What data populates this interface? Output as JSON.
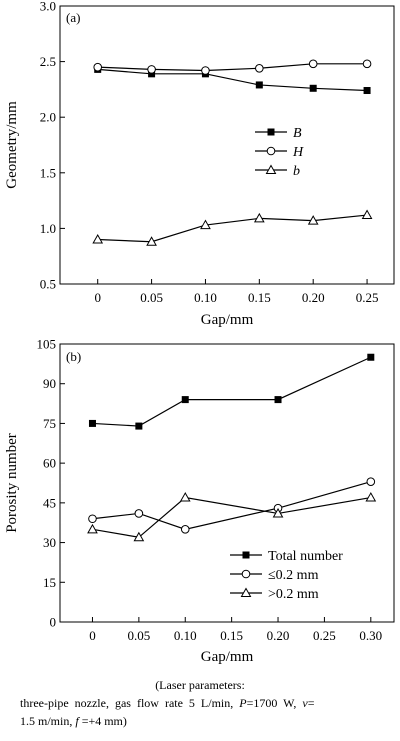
{
  "chart_data": [
    {
      "type": "line",
      "panel_label": "(a)",
      "xlabel": "Gap/mm",
      "ylabel": "Geometry/mm",
      "x": [
        0,
        0.05,
        0.1,
        0.15,
        0.2,
        0.25
      ],
      "x_tick_labels": [
        "0",
        "0.05",
        "0.10",
        "0.15",
        "0.20",
        "0.25"
      ],
      "xlim": [
        -0.035,
        0.275
      ],
      "ylim": [
        0.5,
        3.0
      ],
      "y_ticks": [
        0.5,
        1.0,
        1.5,
        2.0,
        2.5,
        3.0
      ],
      "y_tick_labels": [
        "0.5",
        "1.0",
        "1.5",
        "2.0",
        "2.5",
        "3.0"
      ],
      "legend_position": "center-right",
      "series": [
        {
          "name": "B",
          "marker": "square-filled",
          "values": [
            2.43,
            2.39,
            2.39,
            2.29,
            2.26,
            2.24
          ]
        },
        {
          "name": "H",
          "marker": "circle-open",
          "values": [
            2.45,
            2.43,
            2.42,
            2.44,
            2.48,
            2.48
          ]
        },
        {
          "name": "b",
          "marker": "triangle-open",
          "values": [
            0.9,
            0.88,
            1.03,
            1.09,
            1.07,
            1.12
          ]
        }
      ]
    },
    {
      "type": "line",
      "panel_label": "(b)",
      "xlabel": "Gap/mm",
      "ylabel": "Porosity number",
      "x": [
        0,
        0.05,
        0.1,
        0.2,
        0.3
      ],
      "x_ticks": [
        0,
        0.05,
        0.1,
        0.15,
        0.2,
        0.25,
        0.3
      ],
      "x_tick_labels": [
        "0",
        "0.05",
        "0.10",
        "0.15",
        "0.20",
        "0.25",
        "0.30"
      ],
      "xlim": [
        -0.035,
        0.325
      ],
      "ylim": [
        0,
        105
      ],
      "y_ticks": [
        0,
        15,
        30,
        45,
        60,
        75,
        90,
        105
      ],
      "y_tick_labels": [
        "0",
        "15",
        "30",
        "45",
        "60",
        "75",
        "90",
        "105"
      ],
      "legend_position": "bottom-right",
      "series": [
        {
          "name": "Total number",
          "marker": "square-filled",
          "values": [
            75,
            74,
            84,
            84,
            100
          ]
        },
        {
          "name": "≤0.2 mm",
          "marker": "circle-open",
          "values": [
            39,
            41,
            35,
            43,
            53
          ]
        },
        {
          "name": ">0.2 mm",
          "marker": "triangle-open",
          "values": [
            35,
            32,
            47,
            41,
            47
          ]
        }
      ]
    }
  ],
  "caption": {
    "line1": "(Laser   parameters:",
    "line2_a": "three-pipe  nozzle,  gas  flow  rate  5  L/min,  ",
    "line2_P": "P",
    "line2_b": "=1700  W,  ",
    "line2_v": "v",
    "line2_c": "=",
    "line3_a": "1.5 m/min, ",
    "line3_f": "f",
    "line3_b": " =+4 mm)"
  }
}
